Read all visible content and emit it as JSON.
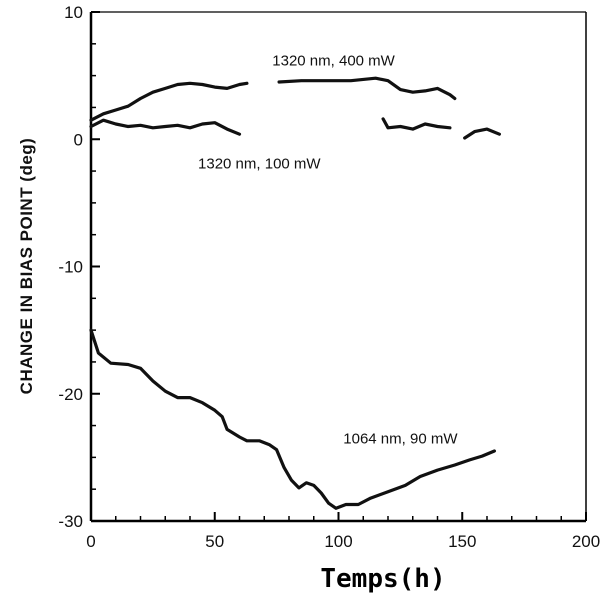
{
  "chart_data": {
    "type": "line",
    "xlabel": "Temps(h)",
    "ylabel": "CHANGE IN BIAS POINT (deg)",
    "xlim": [
      0,
      200
    ],
    "ylim": [
      -30,
      10
    ],
    "x_ticks": [
      0,
      50,
      100,
      150,
      200
    ],
    "y_ticks": [
      10,
      0,
      -10,
      -20,
      -30
    ],
    "grid": false,
    "series": [
      {
        "name": "1320 nm, 400 mW",
        "segments": [
          [
            [
              0,
              1.5
            ],
            [
              5,
              2.0
            ],
            [
              10,
              2.3
            ],
            [
              15,
              2.6
            ],
            [
              20,
              3.2
            ],
            [
              25,
              3.7
            ],
            [
              30,
              4.0
            ],
            [
              35,
              4.3
            ],
            [
              40,
              4.4
            ],
            [
              45,
              4.3
            ],
            [
              50,
              4.1
            ],
            [
              55,
              4.0
            ],
            [
              60,
              4.3
            ],
            [
              63,
              4.4
            ]
          ],
          [
            [
              76,
              4.5
            ],
            [
              85,
              4.6
            ],
            [
              95,
              4.6
            ],
            [
              105,
              4.6
            ],
            [
              115,
              4.8
            ],
            [
              120,
              4.6
            ],
            [
              125,
              3.9
            ],
            [
              130,
              3.7
            ],
            [
              135,
              3.8
            ],
            [
              140,
              4.0
            ],
            [
              145,
              3.5
            ],
            [
              147,
              3.2
            ]
          ]
        ]
      },
      {
        "name": "1320 nm, 100 mW",
        "segments": [
          [
            [
              0,
              1.0
            ],
            [
              5,
              1.5
            ],
            [
              10,
              1.2
            ],
            [
              15,
              1.0
            ],
            [
              20,
              1.1
            ],
            [
              25,
              0.9
            ],
            [
              30,
              1.0
            ],
            [
              35,
              1.1
            ],
            [
              40,
              0.9
            ],
            [
              45,
              1.2
            ],
            [
              50,
              1.3
            ],
            [
              55,
              0.8
            ],
            [
              60,
              0.4
            ]
          ],
          [
            [
              118,
              1.6
            ],
            [
              120,
              0.9
            ],
            [
              125,
              1.0
            ],
            [
              130,
              0.8
            ],
            [
              135,
              1.2
            ],
            [
              140,
              1.0
            ],
            [
              145,
              0.9
            ]
          ],
          [
            [
              151,
              0.1
            ],
            [
              155,
              0.6
            ],
            [
              160,
              0.8
            ],
            [
              165,
              0.4
            ]
          ]
        ]
      },
      {
        "name": "1064 nm, 90 mW",
        "segments": [
          [
            [
              0,
              -15.0
            ],
            [
              3,
              -16.8
            ],
            [
              8,
              -17.6
            ],
            [
              15,
              -17.7
            ],
            [
              20,
              -18.0
            ],
            [
              25,
              -19.0
            ],
            [
              30,
              -19.8
            ],
            [
              35,
              -20.3
            ],
            [
              40,
              -20.3
            ],
            [
              45,
              -20.7
            ],
            [
              50,
              -21.3
            ],
            [
              53,
              -21.8
            ],
            [
              55,
              -22.8
            ],
            [
              60,
              -23.4
            ],
            [
              63,
              -23.7
            ],
            [
              68,
              -23.7
            ],
            [
              72,
              -24.0
            ],
            [
              75,
              -24.4
            ],
            [
              78,
              -25.8
            ],
            [
              81,
              -26.8
            ],
            [
              84,
              -27.4
            ],
            [
              87,
              -27.0
            ],
            [
              90,
              -27.2
            ],
            [
              93,
              -27.8
            ],
            [
              96,
              -28.6
            ],
            [
              99,
              -29.0
            ],
            [
              103,
              -28.7
            ],
            [
              108,
              -28.7
            ],
            [
              113,
              -28.2
            ],
            [
              120,
              -27.7
            ],
            [
              127,
              -27.2
            ],
            [
              133,
              -26.5
            ],
            [
              140,
              -26.0
            ],
            [
              147,
              -25.6
            ],
            [
              153,
              -25.2
            ],
            [
              158,
              -24.9
            ],
            [
              163,
              -24.5
            ]
          ]
        ]
      }
    ],
    "annotations": [
      {
        "text": "1320 nm, 400 mW",
        "x": 98,
        "y": 5.8
      },
      {
        "text": "1320 nm, 100 mW",
        "x": 68,
        "y": -2.3
      },
      {
        "text": "1064 nm, 90 mW",
        "x": 125,
        "y": -23.9
      }
    ]
  }
}
